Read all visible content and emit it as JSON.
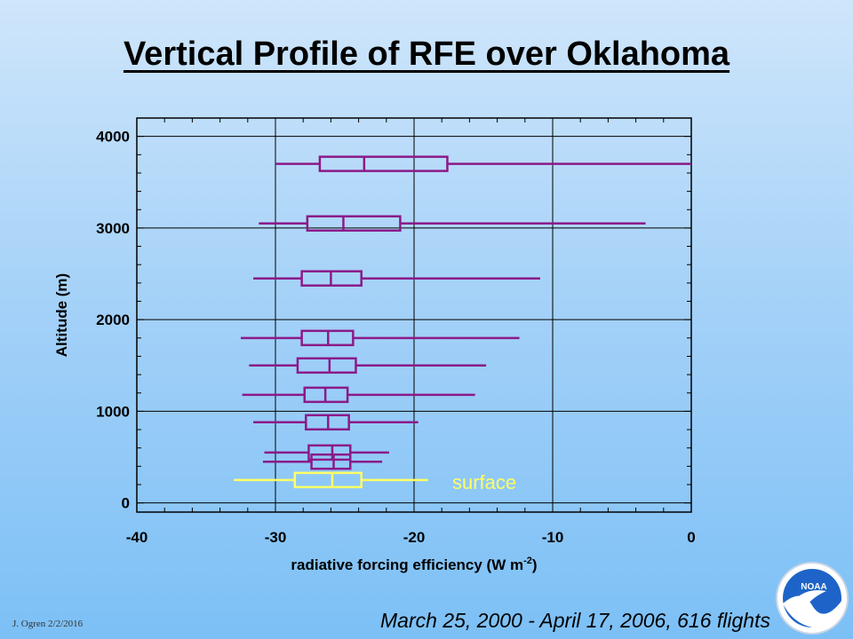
{
  "slide": {
    "title": "Vertical Profile of RFE over Oklahoma",
    "footer_author": "J. Ogren  2/2/2016",
    "footer_dates": "March 25, 2000 - April 17, 2006, 616 flights",
    "logo_text": "NOAA"
  },
  "chart_data": {
    "type": "boxplot",
    "xlabel": "radiative forcing efficiency (W m",
    "xlabel_sup": "-2",
    "xlabel_tail": ")",
    "ylabel": "Altitude (m)",
    "xlim": [
      -40,
      0
    ],
    "ylim": [
      -100,
      4200
    ],
    "xticks": [
      -40,
      -30,
      -20,
      -10,
      0
    ],
    "yticks": [
      0,
      1000,
      2000,
      3000,
      4000
    ],
    "grid": true,
    "colors": {
      "profile": "#8b1a89",
      "surface": "#ffff66",
      "annotation": "#ffff66"
    },
    "annotation": "surface",
    "boxes": [
      {
        "altitude": 3700,
        "min": -30.0,
        "q1": -26.8,
        "median": -23.6,
        "q3": -17.6,
        "max": 0.0
      },
      {
        "altitude": 3050,
        "min": -31.2,
        "q1": -27.7,
        "median": -25.1,
        "q3": -21.0,
        "max": -3.3
      },
      {
        "altitude": 2450,
        "min": -31.6,
        "q1": -28.1,
        "median": -26.0,
        "q3": -23.8,
        "max": -10.9
      },
      {
        "altitude": 1800,
        "min": -32.5,
        "q1": -28.1,
        "median": -26.2,
        "q3": -24.4,
        "max": -12.4
      },
      {
        "altitude": 1500,
        "min": -31.9,
        "q1": -28.4,
        "median": -26.1,
        "q3": -24.2,
        "max": -14.8
      },
      {
        "altitude": 1180,
        "min": -32.4,
        "q1": -27.9,
        "median": -26.4,
        "q3": -24.8,
        "max": -15.6
      },
      {
        "altitude": 880,
        "min": -31.6,
        "q1": -27.8,
        "median": -26.2,
        "q3": -24.7,
        "max": -19.7
      },
      {
        "altitude": 550,
        "min": -30.8,
        "q1": -27.6,
        "median": -25.9,
        "q3": -24.6,
        "max": -21.8
      },
      {
        "altitude": 450,
        "min": -30.9,
        "q1": -27.4,
        "median": -25.8,
        "q3": -24.6,
        "max": -22.3
      },
      {
        "altitude": 250,
        "min": -33.0,
        "q1": -28.6,
        "median": -25.9,
        "q3": -23.8,
        "max": -19.0,
        "surface": true
      }
    ]
  }
}
